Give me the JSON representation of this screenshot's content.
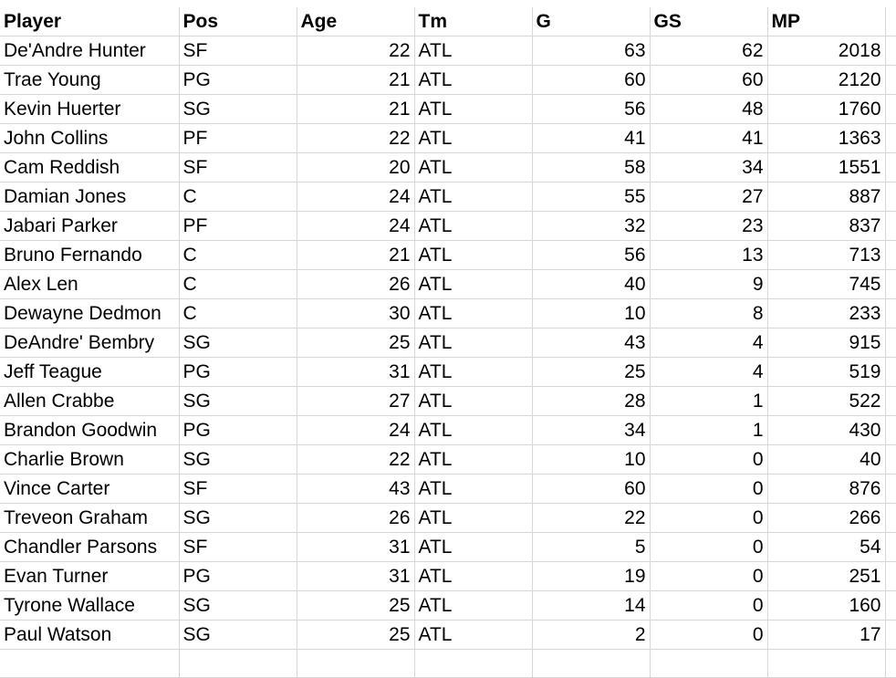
{
  "sheet": {
    "headers": [
      "Player",
      "Pos",
      "Age",
      "Tm",
      "G",
      "GS",
      "MP"
    ],
    "rows": [
      [
        "De'Andre Hunter",
        "SF",
        "22",
        "ATL",
        "63",
        "62",
        "2018"
      ],
      [
        "Trae Young",
        "PG",
        "21",
        "ATL",
        "60",
        "60",
        "2120"
      ],
      [
        "Kevin Huerter",
        "SG",
        "21",
        "ATL",
        "56",
        "48",
        "1760"
      ],
      [
        "John Collins",
        "PF",
        "22",
        "ATL",
        "41",
        "41",
        "1363"
      ],
      [
        "Cam Reddish",
        "SF",
        "20",
        "ATL",
        "58",
        "34",
        "1551"
      ],
      [
        "Damian Jones",
        "C",
        "24",
        "ATL",
        "55",
        "27",
        "887"
      ],
      [
        "Jabari Parker",
        "PF",
        "24",
        "ATL",
        "32",
        "23",
        "837"
      ],
      [
        "Bruno Fernando",
        "C",
        "21",
        "ATL",
        "56",
        "13",
        "713"
      ],
      [
        "Alex Len",
        "C",
        "26",
        "ATL",
        "40",
        "9",
        "745"
      ],
      [
        "Dewayne Dedmon",
        "C",
        "30",
        "ATL",
        "10",
        "8",
        "233"
      ],
      [
        "DeAndre' Bembry",
        "SG",
        "25",
        "ATL",
        "43",
        "4",
        "915"
      ],
      [
        "Jeff Teague",
        "PG",
        "31",
        "ATL",
        "25",
        "4",
        "519"
      ],
      [
        "Allen Crabbe",
        "SG",
        "27",
        "ATL",
        "28",
        "1",
        "522"
      ],
      [
        "Brandon Goodwin",
        "PG",
        "24",
        "ATL",
        "34",
        "1",
        "430"
      ],
      [
        "Charlie Brown",
        "SG",
        "22",
        "ATL",
        "10",
        "0",
        "40"
      ],
      [
        "Vince Carter",
        "SF",
        "43",
        "ATL",
        "60",
        "0",
        "876"
      ],
      [
        "Treveon Graham",
        "SG",
        "26",
        "ATL",
        "22",
        "0",
        "266"
      ],
      [
        "Chandler Parsons",
        "SF",
        "31",
        "ATL",
        "5",
        "0",
        "54"
      ],
      [
        "Evan Turner",
        "PG",
        "31",
        "ATL",
        "19",
        "0",
        "251"
      ],
      [
        "Tyrone Wallace",
        "SG",
        "25",
        "ATL",
        "14",
        "0",
        "160"
      ],
      [
        "Paul Watson",
        "SG",
        "25",
        "ATL",
        "2",
        "0",
        "17"
      ]
    ],
    "numeric_columns": [
      2,
      4,
      5,
      6
    ]
  }
}
